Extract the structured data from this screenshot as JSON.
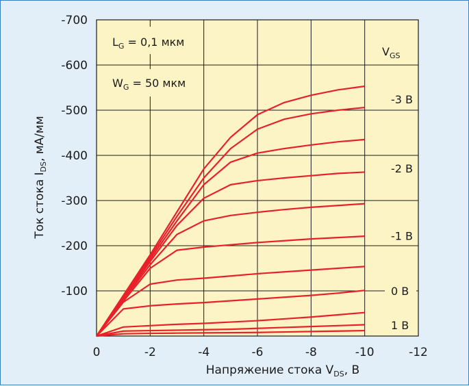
{
  "chart_data": {
    "type": "line",
    "xlabel": {
      "main": "Напряжение стока V",
      "sub": "DS",
      "suffix": ", В"
    },
    "ylabel": {
      "main": "Ток стока I",
      "sub": "DS",
      "suffix": ", мА/мм"
    },
    "xlim": [
      0,
      -12
    ],
    "ylim": [
      0,
      -700
    ],
    "x_ticks": [
      {
        "value": 0,
        "label": "0"
      },
      {
        "value": -2,
        "label": "-2"
      },
      {
        "value": -4,
        "label": "-4"
      },
      {
        "value": -6,
        "label": "-6"
      },
      {
        "value": -8,
        "label": "-8"
      },
      {
        "value": -10,
        "label": "-10"
      },
      {
        "value": -12,
        "label": "-12"
      }
    ],
    "y_ticks": [
      {
        "value": -100,
        "label": "-100"
      },
      {
        "value": -200,
        "label": "-200"
      },
      {
        "value": -300,
        "label": "-300"
      },
      {
        "value": -400,
        "label": "-400"
      },
      {
        "value": -500,
        "label": "-500"
      },
      {
        "value": -600,
        "label": "-600"
      },
      {
        "value": -700,
        "label": "-700"
      }
    ],
    "grid": true,
    "line_color": "#e8202a",
    "plot_background": "#fdf4c6",
    "annotations": [
      {
        "main": "L",
        "sub": "G",
        "rest": " = 0,1 мкм"
      },
      {
        "main": "W",
        "sub": "G",
        "rest": " = 50 мкм"
      }
    ],
    "legend_title": {
      "main": "V",
      "sub": "GS"
    },
    "curve_labels": [
      {
        "text": "-3 В",
        "y": -524
      },
      {
        "text": "-2 В",
        "y": -371
      },
      {
        "text": "-1 В",
        "y": -222
      },
      {
        "text": "0 В",
        "y": -100
      },
      {
        "text": "1 В",
        "y": -24
      }
    ],
    "series": [
      {
        "values": [
          [
            0,
            0
          ],
          [
            -1,
            -90
          ],
          [
            -2,
            -180
          ],
          [
            -3,
            -275
          ],
          [
            -4,
            -370
          ],
          [
            -5,
            -440
          ],
          [
            -6,
            -490
          ],
          [
            -7,
            -517
          ],
          [
            -8,
            -533
          ],
          [
            -9,
            -545
          ],
          [
            -10,
            -553
          ]
        ]
      },
      {
        "values": [
          [
            0,
            0
          ],
          [
            -1,
            -88
          ],
          [
            -2,
            -175
          ],
          [
            -3,
            -265
          ],
          [
            -4,
            -350
          ],
          [
            -5,
            -415
          ],
          [
            -6,
            -458
          ],
          [
            -7,
            -480
          ],
          [
            -8,
            -492
          ],
          [
            -9,
            -500
          ],
          [
            -10,
            -506
          ]
        ]
      },
      {
        "values": [
          [
            0,
            0
          ],
          [
            -1,
            -85
          ],
          [
            -2,
            -170
          ],
          [
            -3,
            -255
          ],
          [
            -4,
            -335
          ],
          [
            -5,
            -385
          ],
          [
            -6,
            -405
          ],
          [
            -7,
            -415
          ],
          [
            -8,
            -423
          ],
          [
            -9,
            -430
          ],
          [
            -10,
            -435
          ]
        ]
      },
      {
        "values": [
          [
            0,
            0
          ],
          [
            -1,
            -82
          ],
          [
            -2,
            -165
          ],
          [
            -3,
            -245
          ],
          [
            -4,
            -305
          ],
          [
            -5,
            -335
          ],
          [
            -6,
            -344
          ],
          [
            -7,
            -350
          ],
          [
            -8,
            -355
          ],
          [
            -9,
            -360
          ],
          [
            -10,
            -363
          ]
        ]
      },
      {
        "values": [
          [
            0,
            0
          ],
          [
            -1,
            -80
          ],
          [
            -2,
            -158
          ],
          [
            -3,
            -225
          ],
          [
            -4,
            -255
          ],
          [
            -5,
            -267
          ],
          [
            -6,
            -274
          ],
          [
            -7,
            -280
          ],
          [
            -8,
            -285
          ],
          [
            -9,
            -289
          ],
          [
            -10,
            -293
          ]
        ]
      },
      {
        "values": [
          [
            0,
            0
          ],
          [
            -1,
            -77
          ],
          [
            -2,
            -150
          ],
          [
            -3,
            -190
          ],
          [
            -4,
            -197
          ],
          [
            -5,
            -202
          ],
          [
            -6,
            -207
          ],
          [
            -7,
            -211
          ],
          [
            -8,
            -215
          ],
          [
            -9,
            -218
          ],
          [
            -10,
            -221
          ]
        ]
      },
      {
        "values": [
          [
            0,
            0
          ],
          [
            -1,
            -75
          ],
          [
            -2,
            -115
          ],
          [
            -3,
            -124
          ],
          [
            -4,
            -128
          ],
          [
            -5,
            -133
          ],
          [
            -6,
            -138
          ],
          [
            -7,
            -142
          ],
          [
            -8,
            -146
          ],
          [
            -9,
            -150
          ],
          [
            -10,
            -154
          ]
        ]
      },
      {
        "values": [
          [
            0,
            0
          ],
          [
            -1,
            -60
          ],
          [
            -2,
            -67
          ],
          [
            -3,
            -71
          ],
          [
            -4,
            -74
          ],
          [
            -5,
            -78
          ],
          [
            -6,
            -82
          ],
          [
            -7,
            -86
          ],
          [
            -8,
            -90
          ],
          [
            -9,
            -95
          ],
          [
            -10,
            -101
          ]
        ]
      },
      {
        "values": [
          [
            0,
            0
          ],
          [
            -1,
            -20
          ],
          [
            -2,
            -23
          ],
          [
            -3,
            -26
          ],
          [
            -4,
            -28
          ],
          [
            -5,
            -31
          ],
          [
            -6,
            -34
          ],
          [
            -7,
            -38
          ],
          [
            -8,
            -42
          ],
          [
            -9,
            -47
          ],
          [
            -10,
            -52
          ]
        ]
      },
      {
        "values": [
          [
            0,
            0
          ],
          [
            -1,
            -11
          ],
          [
            -2,
            -12
          ],
          [
            -3,
            -13
          ],
          [
            -4,
            -14
          ],
          [
            -5,
            -15
          ],
          [
            -6,
            -17
          ],
          [
            -7,
            -19
          ],
          [
            -8,
            -21
          ],
          [
            -9,
            -23
          ],
          [
            -10,
            -25
          ]
        ]
      },
      {
        "values": [
          [
            0,
            0
          ],
          [
            -1,
            -5
          ],
          [
            -2,
            -6
          ],
          [
            -3,
            -6.5
          ],
          [
            -4,
            -7
          ],
          [
            -5,
            -7.5
          ],
          [
            -6,
            -8
          ],
          [
            -7,
            -9
          ],
          [
            -8,
            -10
          ],
          [
            -9,
            -11
          ],
          [
            -10,
            -12
          ]
        ]
      }
    ]
  }
}
